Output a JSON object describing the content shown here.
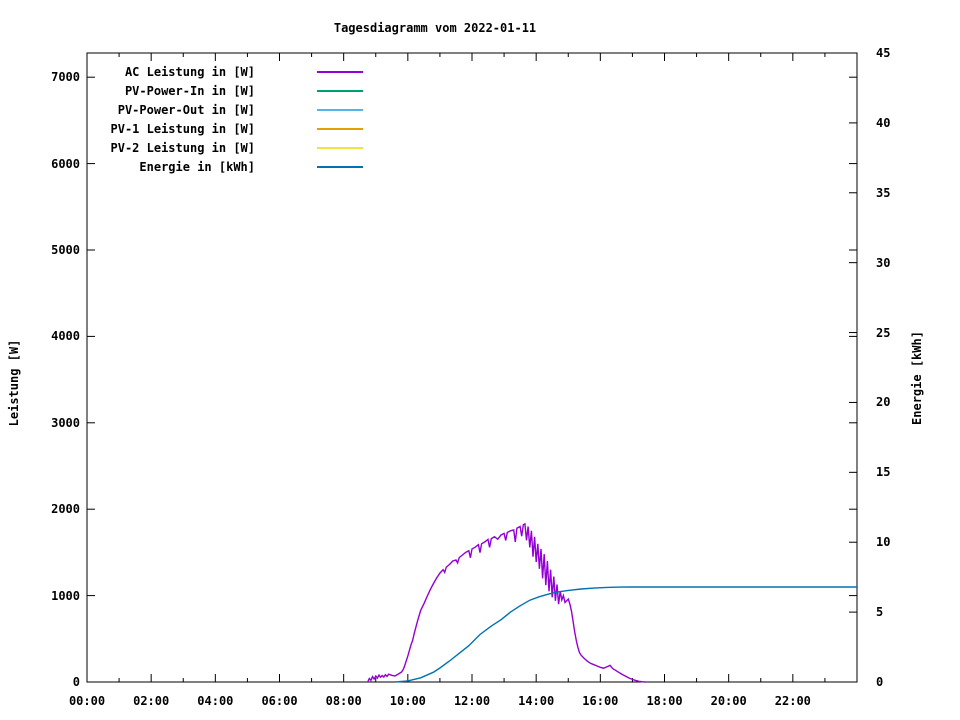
{
  "title": "Tagesdiagramm vom 2022-01-11",
  "axes": {
    "x": {
      "tick_labels": [
        "00:00",
        "02:00",
        "04:00",
        "06:00",
        "08:00",
        "10:00",
        "12:00",
        "14:00",
        "16:00",
        "18:00",
        "20:00",
        "22:00"
      ],
      "major_step_hours": 2,
      "minor_step_hours": 1,
      "range_hours": [
        0,
        24
      ]
    },
    "y_left": {
      "label": "Leistung [W]",
      "ticks": [
        0,
        1000,
        2000,
        3000,
        4000,
        5000,
        6000,
        7000
      ],
      "range": [
        0,
        7280
      ]
    },
    "y_right": {
      "label": "Energie [kWh]",
      "ticks": [
        0,
        5,
        10,
        15,
        20,
        25,
        30,
        35,
        40,
        45
      ],
      "range": [
        0,
        45
      ]
    }
  },
  "legend": [
    {
      "label": "AC Leistung in [W]",
      "color": "#9400D3"
    },
    {
      "label": "PV-Power-In in [W]",
      "color": "#009E73"
    },
    {
      "label": "PV-Power-Out in [W]",
      "color": "#56B4E9"
    },
    {
      "label": "PV-1 Leistung in [W]",
      "color": "#E69F00"
    },
    {
      "label": "PV-2 Leistung in [W]",
      "color": "#F0E442"
    },
    {
      "label": "Energie in [kWh]",
      "color": "#0072B2"
    }
  ],
  "chart_data": {
    "type": "line",
    "title": "Tagesdiagramm vom 2022-01-11",
    "xlabel": "",
    "x_unit": "time of day (hours)",
    "x_range": [
      0,
      24
    ],
    "ylabel": "Leistung [W]",
    "y_left_range": [
      0,
      7280
    ],
    "y2label": "Energie [kWh]",
    "y_right_range": [
      0,
      45
    ],
    "grid": false,
    "legend_position": "top-left",
    "series": [
      {
        "name": "AC Leistung in [W]",
        "axis": "left",
        "color": "#9400D3",
        "points": [
          [
            8.75,
            0
          ],
          [
            8.8,
            40
          ],
          [
            8.85,
            20
          ],
          [
            8.9,
            62
          ],
          [
            8.95,
            35
          ],
          [
            9.0,
            70
          ],
          [
            9.05,
            45
          ],
          [
            9.1,
            80
          ],
          [
            9.15,
            55
          ],
          [
            9.2,
            75
          ],
          [
            9.25,
            58
          ],
          [
            9.3,
            85
          ],
          [
            9.35,
            65
          ],
          [
            9.4,
            90
          ],
          [
            9.5,
            78
          ],
          [
            9.6,
            70
          ],
          [
            9.7,
            92
          ],
          [
            9.8,
            115
          ],
          [
            9.85,
            140
          ],
          [
            9.9,
            185
          ],
          [
            10.0,
            300
          ],
          [
            10.1,
            430
          ],
          [
            10.15,
            480
          ],
          [
            10.2,
            560
          ],
          [
            10.3,
            705
          ],
          [
            10.4,
            830
          ],
          [
            10.5,
            905
          ],
          [
            10.6,
            990
          ],
          [
            10.7,
            1070
          ],
          [
            10.8,
            1140
          ],
          [
            10.9,
            1205
          ],
          [
            11.0,
            1260
          ],
          [
            11.1,
            1300
          ],
          [
            11.15,
            1268
          ],
          [
            11.2,
            1330
          ],
          [
            11.3,
            1360
          ],
          [
            11.4,
            1400
          ],
          [
            11.5,
            1412
          ],
          [
            11.55,
            1378
          ],
          [
            11.6,
            1440
          ],
          [
            11.7,
            1470
          ],
          [
            11.8,
            1500
          ],
          [
            11.9,
            1520
          ],
          [
            11.95,
            1438
          ],
          [
            12.0,
            1540
          ],
          [
            12.1,
            1560
          ],
          [
            12.2,
            1590
          ],
          [
            12.25,
            1498
          ],
          [
            12.3,
            1600
          ],
          [
            12.4,
            1622
          ],
          [
            12.5,
            1650
          ],
          [
            12.55,
            1558
          ],
          [
            12.6,
            1660
          ],
          [
            12.7,
            1682
          ],
          [
            12.8,
            1652
          ],
          [
            12.9,
            1700
          ],
          [
            13.0,
            1720
          ],
          [
            13.05,
            1638
          ],
          [
            13.1,
            1730
          ],
          [
            13.2,
            1750
          ],
          [
            13.3,
            1760
          ],
          [
            13.35,
            1620
          ],
          [
            13.4,
            1780
          ],
          [
            13.5,
            1800
          ],
          [
            13.55,
            1688
          ],
          [
            13.6,
            1820
          ],
          [
            13.65,
            1830
          ],
          [
            13.7,
            1640
          ],
          [
            13.75,
            1800
          ],
          [
            13.8,
            1558
          ],
          [
            13.85,
            1750
          ],
          [
            13.9,
            1450
          ],
          [
            13.95,
            1680
          ],
          [
            14.0,
            1390
          ],
          [
            14.05,
            1600
          ],
          [
            14.1,
            1310
          ],
          [
            14.15,
            1540
          ],
          [
            14.2,
            1200
          ],
          [
            14.25,
            1480
          ],
          [
            14.3,
            1120
          ],
          [
            14.35,
            1400
          ],
          [
            14.4,
            1050
          ],
          [
            14.45,
            1300
          ],
          [
            14.5,
            980
          ],
          [
            14.55,
            1220
          ],
          [
            14.6,
            940
          ],
          [
            14.65,
            1130
          ],
          [
            14.7,
            900
          ],
          [
            14.75,
            1050
          ],
          [
            14.8,
            950
          ],
          [
            14.85,
            1000
          ],
          [
            14.9,
            920
          ],
          [
            15.0,
            960
          ],
          [
            15.05,
            900
          ],
          [
            15.1,
            820
          ],
          [
            15.15,
            700
          ],
          [
            15.2,
            580
          ],
          [
            15.25,
            480
          ],
          [
            15.3,
            400
          ],
          [
            15.35,
            340
          ],
          [
            15.4,
            310
          ],
          [
            15.5,
            272
          ],
          [
            15.6,
            240
          ],
          [
            15.7,
            215
          ],
          [
            15.8,
            200
          ],
          [
            15.9,
            185
          ],
          [
            16.0,
            170
          ],
          [
            16.1,
            160
          ],
          [
            16.2,
            175
          ],
          [
            16.3,
            192
          ],
          [
            16.35,
            170
          ],
          [
            16.4,
            150
          ],
          [
            16.5,
            130
          ],
          [
            16.6,
            105
          ],
          [
            16.7,
            85
          ],
          [
            16.8,
            65
          ],
          [
            16.9,
            45
          ],
          [
            17.0,
            30
          ],
          [
            17.1,
            18
          ],
          [
            17.2,
            8
          ],
          [
            17.3,
            3
          ],
          [
            17.4,
            0
          ]
        ]
      },
      {
        "name": "PV-Power-In in [W]",
        "axis": "left",
        "color": "#009E73",
        "points": []
      },
      {
        "name": "PV-Power-Out in [W]",
        "axis": "left",
        "color": "#56B4E9",
        "points": []
      },
      {
        "name": "PV-1 Leistung in [W]",
        "axis": "left",
        "color": "#E69F00",
        "points": []
      },
      {
        "name": "PV-2 Leistung in [W]",
        "axis": "left",
        "color": "#F0E442",
        "points": []
      },
      {
        "name": "Energie in [kWh]",
        "axis": "right",
        "color": "#0072B2",
        "points": [
          [
            9.6,
            0.0
          ],
          [
            10.0,
            0.08
          ],
          [
            10.4,
            0.3
          ],
          [
            10.8,
            0.7
          ],
          [
            11.0,
            1.0
          ],
          [
            11.3,
            1.5
          ],
          [
            11.6,
            2.05
          ],
          [
            11.9,
            2.6
          ],
          [
            12.25,
            3.4
          ],
          [
            12.6,
            4.0
          ],
          [
            12.9,
            4.45
          ],
          [
            13.2,
            5.0
          ],
          [
            13.5,
            5.45
          ],
          [
            13.8,
            5.85
          ],
          [
            14.1,
            6.1
          ],
          [
            14.4,
            6.3
          ],
          [
            14.7,
            6.45
          ],
          [
            15.0,
            6.55
          ],
          [
            15.4,
            6.65
          ],
          [
            15.8,
            6.72
          ],
          [
            16.2,
            6.77
          ],
          [
            16.6,
            6.79
          ],
          [
            17.0,
            6.8
          ],
          [
            24.0,
            6.8
          ]
        ]
      }
    ]
  }
}
